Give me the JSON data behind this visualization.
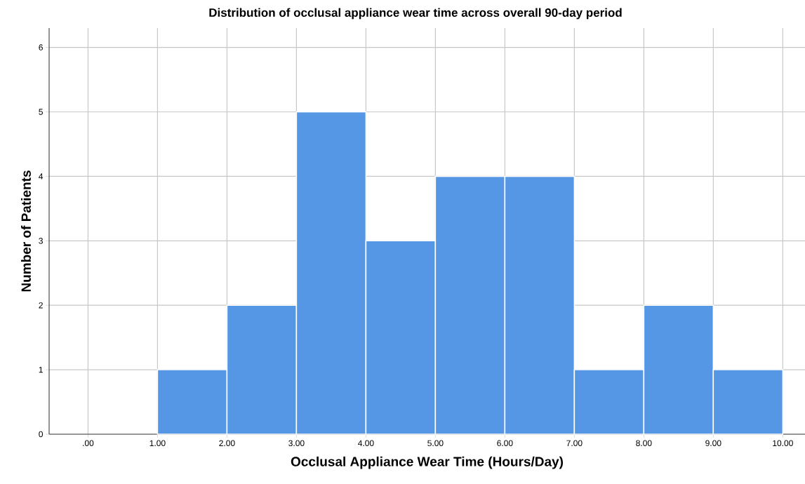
{
  "chart_data": {
    "type": "histogram",
    "title": "Distribution of occlusal appliance wear time across overall 90-day period",
    "xlabel": "Occlusal Appliance Wear Time (Hours/Day)",
    "ylabel": "Number of Patients",
    "bins": [
      1,
      2,
      3,
      4,
      5,
      6,
      7,
      8,
      9,
      10
    ],
    "values": [
      1,
      2,
      5,
      3,
      4,
      4,
      1,
      2,
      1
    ],
    "color": "#5597e4",
    "xlim": [
      -0.56,
      10.32
    ],
    "ylim": [
      0,
      6.3
    ],
    "xticks": [
      {
        "value": 0,
        "label": ".00"
      },
      {
        "value": 1,
        "label": "1.00"
      },
      {
        "value": 2,
        "label": "2.00"
      },
      {
        "value": 3,
        "label": "3.00"
      },
      {
        "value": 4,
        "label": "4.00"
      },
      {
        "value": 5,
        "label": "5.00"
      },
      {
        "value": 6,
        "label": "6.00"
      },
      {
        "value": 7,
        "label": "7.00"
      },
      {
        "value": 8,
        "label": "8.00"
      },
      {
        "value": 9,
        "label": "9.00"
      },
      {
        "value": 10,
        "label": "10.00"
      }
    ],
    "yticks": [
      0,
      1,
      2,
      3,
      4,
      5,
      6
    ],
    "grid": true
  }
}
